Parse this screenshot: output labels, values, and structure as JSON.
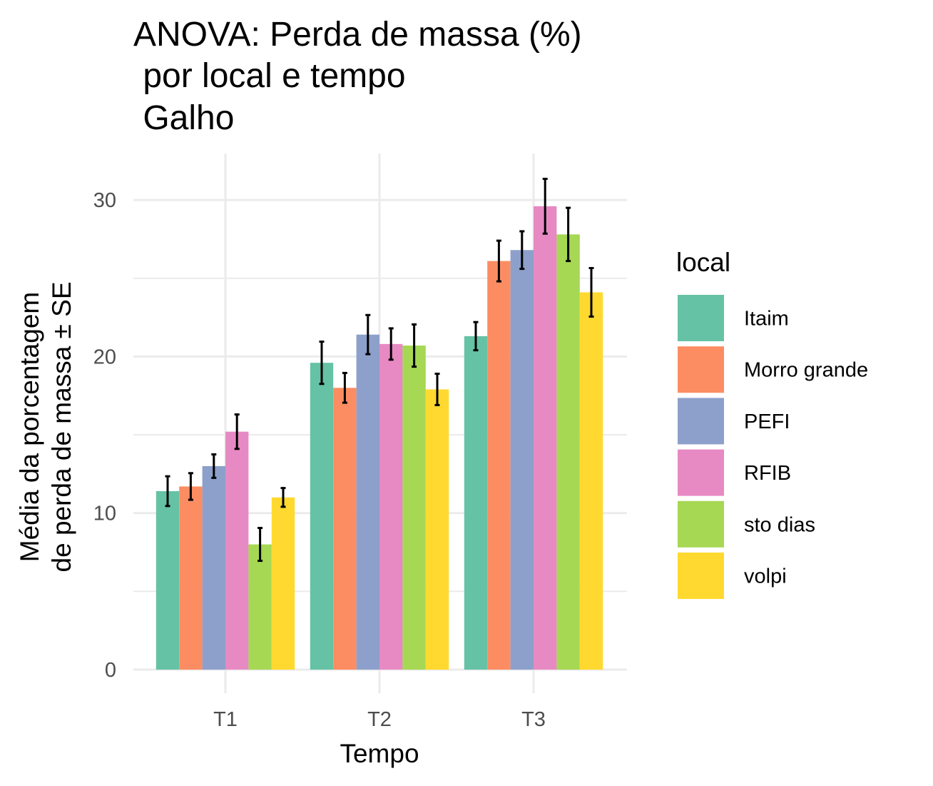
{
  "chart_data": {
    "type": "bar",
    "title_lines": [
      "ANOVA: Perda de massa (%)",
      " por local e tempo",
      " Galho"
    ],
    "xlabel": "Tempo",
    "ylabel_lines": [
      "Média da porcentagem",
      "de perda de massa ± SE"
    ],
    "categories": [
      "T1",
      "T2",
      "T3"
    ],
    "ylim": [
      -1.5,
      33
    ],
    "yticks": [
      0,
      10,
      20,
      30
    ],
    "grid": true,
    "legend": {
      "title": "local",
      "position": "right"
    },
    "series": [
      {
        "name": "Itaim",
        "color": "#66c2a5",
        "values": [
          11.4,
          19.6,
          21.3
        ],
        "se": [
          0.95,
          1.35,
          0.9
        ]
      },
      {
        "name": "Morro grande",
        "color": "#fc8d62",
        "values": [
          11.7,
          18.0,
          26.1
        ],
        "se": [
          0.85,
          0.95,
          1.3
        ]
      },
      {
        "name": "PEFI",
        "color": "#8da0cb",
        "values": [
          13.0,
          21.4,
          26.8
        ],
        "se": [
          0.75,
          1.25,
          1.2
        ]
      },
      {
        "name": "RFIB",
        "color": "#e78ac3",
        "values": [
          15.2,
          20.8,
          29.6
        ],
        "se": [
          1.1,
          1.0,
          1.75
        ]
      },
      {
        "name": "sto dias",
        "color": "#a6d854",
        "values": [
          8.0,
          20.7,
          27.8
        ],
        "se": [
          1.05,
          1.35,
          1.7
        ]
      },
      {
        "name": "volpi",
        "color": "#ffd92f",
        "values": [
          11.0,
          17.9,
          24.1
        ],
        "se": [
          0.6,
          1.0,
          1.55
        ]
      }
    ]
  }
}
